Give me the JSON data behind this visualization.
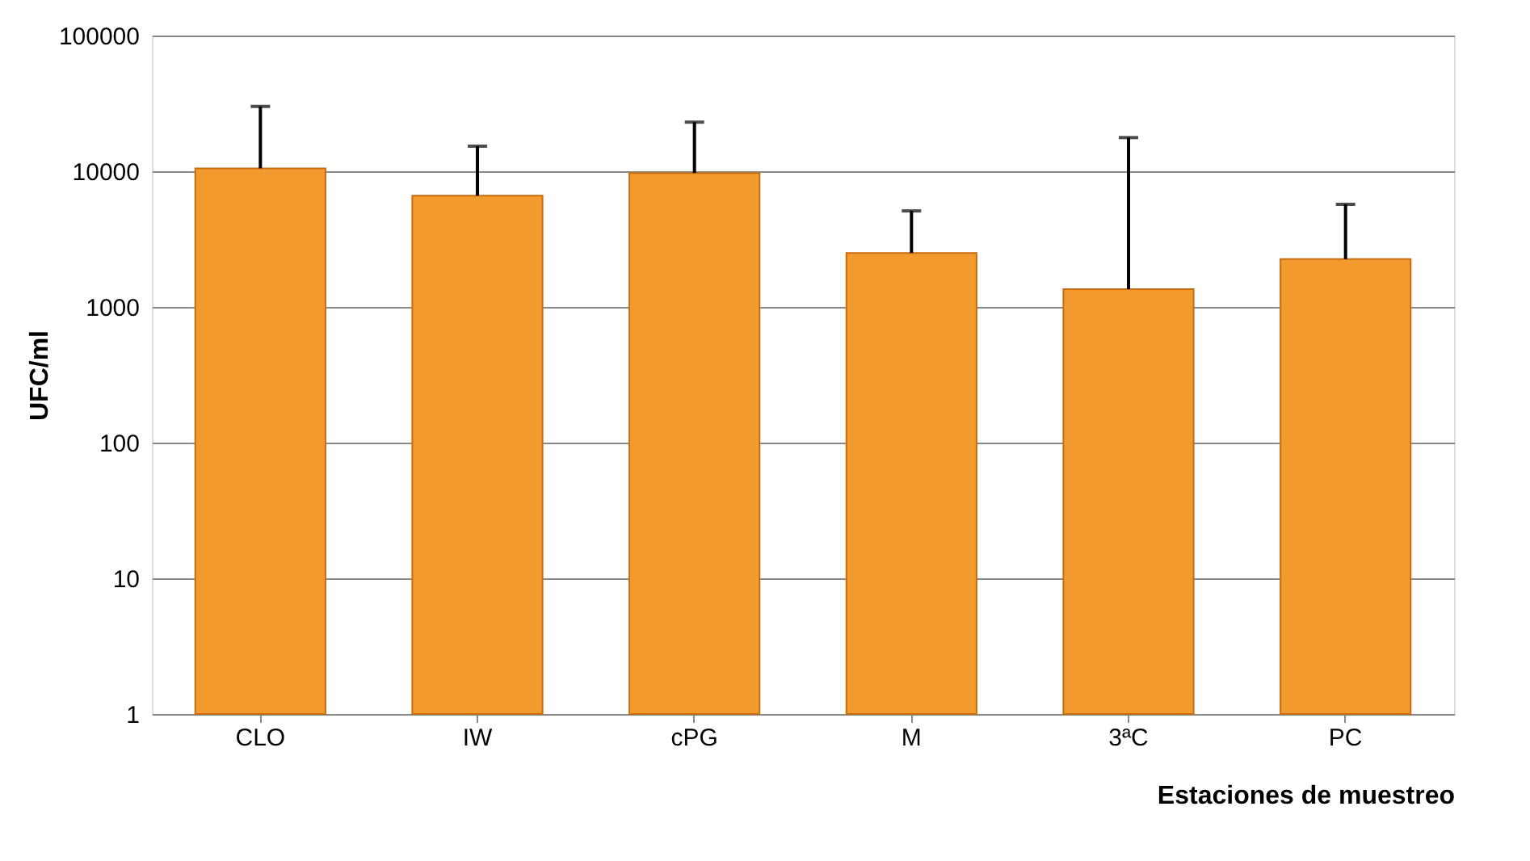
{
  "chart_data": {
    "type": "bar",
    "xlabel": "Estaciones de muestreo",
    "ylabel": "UFC/ml",
    "categories": [
      "CLO",
      "IW",
      "cPG",
      "M",
      "3ªC",
      "PC"
    ],
    "values": [
      10500,
      6600,
      9700,
      2500,
      1350,
      2250
    ],
    "errors": [
      [
        10500,
        30000
      ],
      [
        6600,
        15300
      ],
      [
        9700,
        23000
      ],
      [
        2500,
        5100
      ],
      [
        1350,
        17700
      ],
      [
        2250,
        5700
      ]
    ],
    "color": "#f39a2e",
    "log": "y",
    "ylim": [
      1,
      100000
    ],
    "yticks": [
      1,
      10,
      100,
      1000,
      10000,
      100000
    ],
    "grid": "y"
  }
}
